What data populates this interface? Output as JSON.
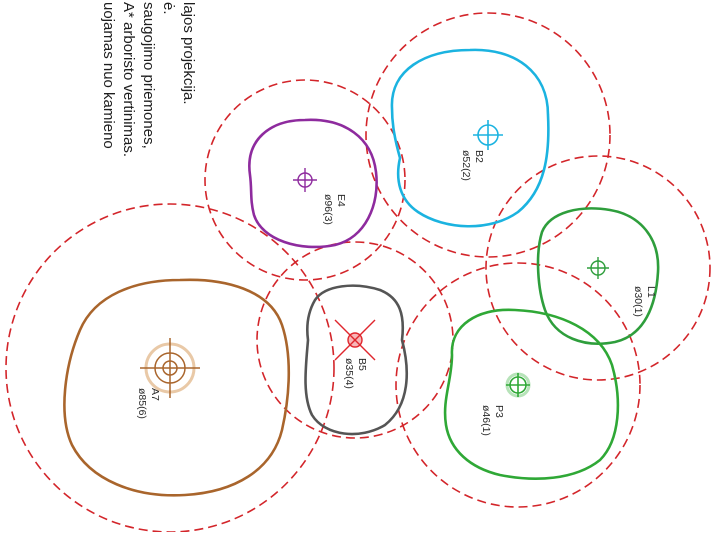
{
  "notes": [
    {
      "text": "lajos projekcija."
    },
    {
      "text": "ė."
    },
    {
      "text": "saugojimo priemones,"
    },
    {
      "text": "A* arboristo vertinimas."
    },
    {
      "text": "uojamas nuo kamieno"
    }
  ],
  "trees": [
    {
      "id": "E4",
      "code": "E4",
      "size": "ø96(3)",
      "color": "#8e2b9e"
    },
    {
      "id": "B2",
      "code": "B2",
      "size": "ø52(2)",
      "color": "#1bb3e0"
    },
    {
      "id": "L1",
      "code": "L1",
      "size": "ø30(1)",
      "color": "#2e9e3c"
    },
    {
      "id": "B5",
      "code": "B5",
      "size": "ø35(4)",
      "color": "#555555"
    },
    {
      "id": "A7",
      "code": "A7",
      "size": "ø85(6)",
      "color": "#a9652c"
    },
    {
      "id": "P3",
      "code": "P3",
      "size": "ø46(1)",
      "color": "#2fa836"
    }
  ],
  "protection_zone_color": "#d3252a"
}
